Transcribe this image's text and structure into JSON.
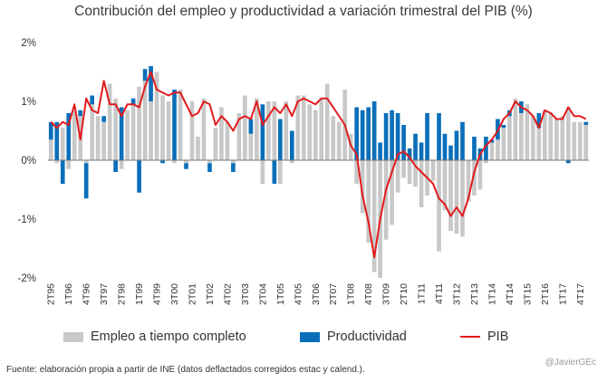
{
  "colors": {
    "empleo": "#c8c8c8",
    "productividad": "#0a6fba",
    "pib": "#e31a1c"
  },
  "credit": "@JavierGEc",
  "source": "Fuente: elaboración  propia  a partir de INE (datos deflactados corregidos estac y calend.).",
  "chart_data": {
    "type": "bar",
    "stacked": true,
    "title": "Contribución del empleo y productividad a variación trimestral del PIB (%)",
    "ylim": [
      -2,
      2
    ],
    "yticks": [
      "2%",
      "1%",
      "0%",
      "-1%",
      "-2%"
    ],
    "ytick_values": [
      2,
      1,
      0,
      -1,
      -2
    ],
    "xtick_labels": [
      "2T95",
      "1T96",
      "4T96",
      "3T97",
      "2T98",
      "1T99",
      "4T99",
      "3T00",
      "2T01",
      "1T02",
      "4T02",
      "3T03",
      "2T04",
      "1T05",
      "4T05",
      "3T06",
      "2T07",
      "1T08",
      "4T08",
      "3T09",
      "2T10",
      "1T11",
      "4T11",
      "3T12",
      "2T13",
      "1T14",
      "4T14",
      "3T15",
      "2T16",
      "1T17",
      "4T17"
    ],
    "categories": [
      "2T95",
      "3T95",
      "4T95",
      "1T96",
      "2T96",
      "3T96",
      "4T96",
      "1T97",
      "2T97",
      "3T97",
      "4T97",
      "1T98",
      "2T98",
      "3T98",
      "4T98",
      "1T99",
      "2T99",
      "3T99",
      "4T99",
      "1T00",
      "2T00",
      "3T00",
      "4T00",
      "1T01",
      "2T01",
      "3T01",
      "4T01",
      "1T02",
      "2T02",
      "3T02",
      "4T02",
      "1T03",
      "2T03",
      "3T03",
      "4T03",
      "1T04",
      "2T04",
      "3T04",
      "4T04",
      "1T05",
      "2T05",
      "3T05",
      "4T05",
      "1T06",
      "2T06",
      "3T06",
      "4T06",
      "1T07",
      "2T07",
      "3T07",
      "4T07",
      "1T08",
      "2T08",
      "3T08",
      "4T08",
      "1T09",
      "2T09",
      "3T09",
      "4T09",
      "1T10",
      "2T10",
      "3T10",
      "4T10",
      "1T11",
      "2T11",
      "3T11",
      "4T11",
      "1T12",
      "2T12",
      "3T12",
      "4T12",
      "1T13",
      "2T13",
      "3T13",
      "4T13",
      "1T14",
      "2T14",
      "3T14",
      "4T14",
      "1T15",
      "2T15",
      "3T15",
      "4T15",
      "1T16",
      "2T16",
      "3T16",
      "4T16",
      "1T17",
      "2T17",
      "3T17",
      "4T17",
      "1T18"
    ],
    "series": [
      {
        "name": "Empleo a tiempo completo",
        "values": [
          0.35,
          -0.05,
          0.55,
          -0.15,
          0.85,
          0.75,
          -0.05,
          0.95,
          0.75,
          0.65,
          1.3,
          1.05,
          -0.15,
          0.85,
          0.95,
          1.25,
          1.35,
          1.0,
          1.5,
          1.1,
          1.0,
          -0.05,
          1.2,
          -0.05,
          1.0,
          0.4,
          1.05,
          -0.05,
          0.55,
          0.9,
          0.65,
          -0.05,
          0.8,
          1.1,
          0.45,
          1.05,
          -0.4,
          1.0,
          1.0,
          -0.4,
          1.0,
          -0.05,
          1.1,
          1.1,
          0.95,
          0.85,
          1.05,
          1.3,
          0.75,
          0.65,
          1.2,
          0.45,
          -0.4,
          -0.9,
          -1.4,
          -1.9,
          -2.0,
          -1.35,
          -1.1,
          -0.55,
          -0.3,
          -0.4,
          -0.45,
          -0.8,
          -0.6,
          -0.35,
          -1.55,
          -0.85,
          -1.2,
          -1.25,
          -1.3,
          -0.7,
          -0.6,
          -0.5,
          -0.05,
          0.3,
          0.35,
          0.55,
          0.75,
          1.05,
          0.8,
          0.95,
          0.75,
          0.55,
          0.85,
          0.8,
          0.7,
          0.75,
          0.9,
          0.65,
          0.65,
          0.6
        ],
        "_note": "values in percentage points"
      },
      {
        "name": "Productividad",
        "values": [
          0.3,
          0.65,
          -0.4,
          0.8,
          0.0,
          0.1,
          -0.6,
          0.15,
          0.0,
          0.1,
          0.0,
          -0.2,
          0.9,
          0.0,
          0.1,
          -0.55,
          0.2,
          0.6,
          0.0,
          -0.05,
          0.0,
          1.2,
          0.0,
          -0.1,
          0.0,
          0.0,
          0.0,
          -0.15,
          0.0,
          0.0,
          0.0,
          -0.15,
          0.0,
          0.0,
          0.25,
          0.0,
          0.95,
          0.0,
          -0.4,
          0.7,
          0.0,
          0.5,
          0.0,
          0.0,
          0.0,
          0.0,
          0.0,
          0.0,
          0.0,
          0.0,
          0.0,
          0.0,
          0.9,
          0.85,
          0.9,
          1.0,
          0.3,
          0.8,
          0.85,
          0.8,
          0.6,
          0.2,
          0.45,
          0.3,
          0.8,
          0.0,
          0.8,
          0.45,
          0.25,
          0.5,
          0.65,
          0.0,
          0.4,
          0.2,
          0.4,
          0.05,
          0.35,
          0.05,
          0.1,
          0.0,
          0.2,
          0.0,
          0.0,
          0.25,
          0.0,
          0.0,
          0.0,
          0.0,
          -0.05,
          0.0,
          0.0,
          0.05
        ],
        "_note2": ""
      }
    ],
    "line": {
      "name": "PIB",
      "values": [
        0.65,
        0.55,
        0.65,
        0.6,
        0.95,
        0.35,
        1.05,
        0.85,
        0.8,
        1.35,
        0.95,
        0.95,
        0.75,
        0.95,
        0.95,
        0.9,
        1.25,
        1.5,
        1.2,
        1.15,
        1.1,
        1.15,
        1.15,
        0.95,
        0.75,
        0.8,
        1.0,
        0.95,
        0.6,
        0.75,
        0.65,
        0.5,
        0.7,
        0.75,
        0.7,
        1.0,
        0.6,
        0.75,
        0.9,
        0.8,
        0.95,
        0.75,
        1.0,
        1.05,
        1.0,
        0.95,
        1.05,
        1.05,
        0.9,
        0.75,
        0.6,
        0.25,
        0.1,
        -0.6,
        -1.05,
        -1.65,
        -1.0,
        -0.5,
        -0.2,
        0.1,
        0.15,
        0.05,
        -0.1,
        -0.2,
        -0.3,
        -0.4,
        -0.65,
        -0.75,
        -0.95,
        -0.8,
        -0.95,
        -0.65,
        -0.2,
        0.1,
        0.25,
        0.35,
        0.5,
        0.7,
        0.8,
        1.0,
        0.9,
        0.85,
        0.75,
        0.55,
        0.85,
        0.8,
        0.7,
        0.7,
        0.9,
        0.75,
        0.75,
        0.7
      ]
    },
    "legend": [
      "Empleo a tiempo completo",
      "Productividad",
      "PIB"
    ],
    "legend_position": "bottom"
  }
}
